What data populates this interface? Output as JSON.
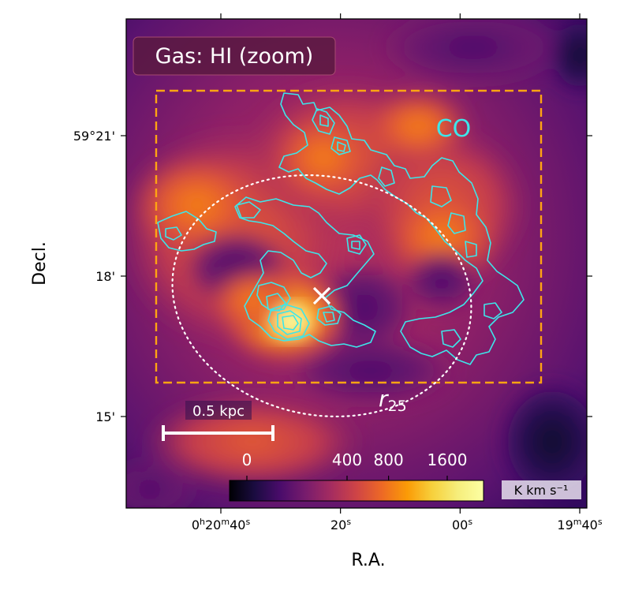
{
  "chart_data": {
    "type": "heatmap",
    "title": "Gas: HI (zoom)",
    "xlabel": "R.A.",
    "ylabel": "Decl.",
    "x_ticks": [
      {
        "label": "0h20m40s",
        "ra_offset_s": 0
      },
      {
        "label": "20s",
        "ra_offset_s": 20
      },
      {
        "label": "00s",
        "ra_offset_s": 40
      },
      {
        "label": "19m40s",
        "ra_offset_s": 60
      }
    ],
    "x_tick_parts": {
      "first": [
        "0",
        "h",
        "20",
        "m",
        "40",
        "s"
      ],
      "second": [
        "20",
        "s"
      ],
      "third": [
        "00",
        "s"
      ],
      "fourth": [
        "19",
        "m",
        "40",
        "s"
      ]
    },
    "y_ticks": [
      {
        "label": "59°21'",
        "dec_arcmin": 21
      },
      {
        "label": "18'",
        "dec_arcmin": 18
      },
      {
        "label": "15'",
        "dec_arcmin": 15
      }
    ],
    "colorbar": {
      "colormap": "inferno",
      "tick_labels": [
        "0",
        "400",
        "800",
        "1600"
      ],
      "tick_values": [
        0,
        400,
        800,
        1600
      ],
      "unit": "K km s⁻¹"
    },
    "annotations": {
      "co_box_label": "CO",
      "r25_label": "r",
      "r25_subscript": "25",
      "scalebar_label": "0.5 kpc"
    },
    "colors": {
      "co_contours": "#3de6ea",
      "co_box": "#ffa412",
      "r25_ellipse": "#ffffff",
      "center_marker": "#ffffff"
    }
  }
}
